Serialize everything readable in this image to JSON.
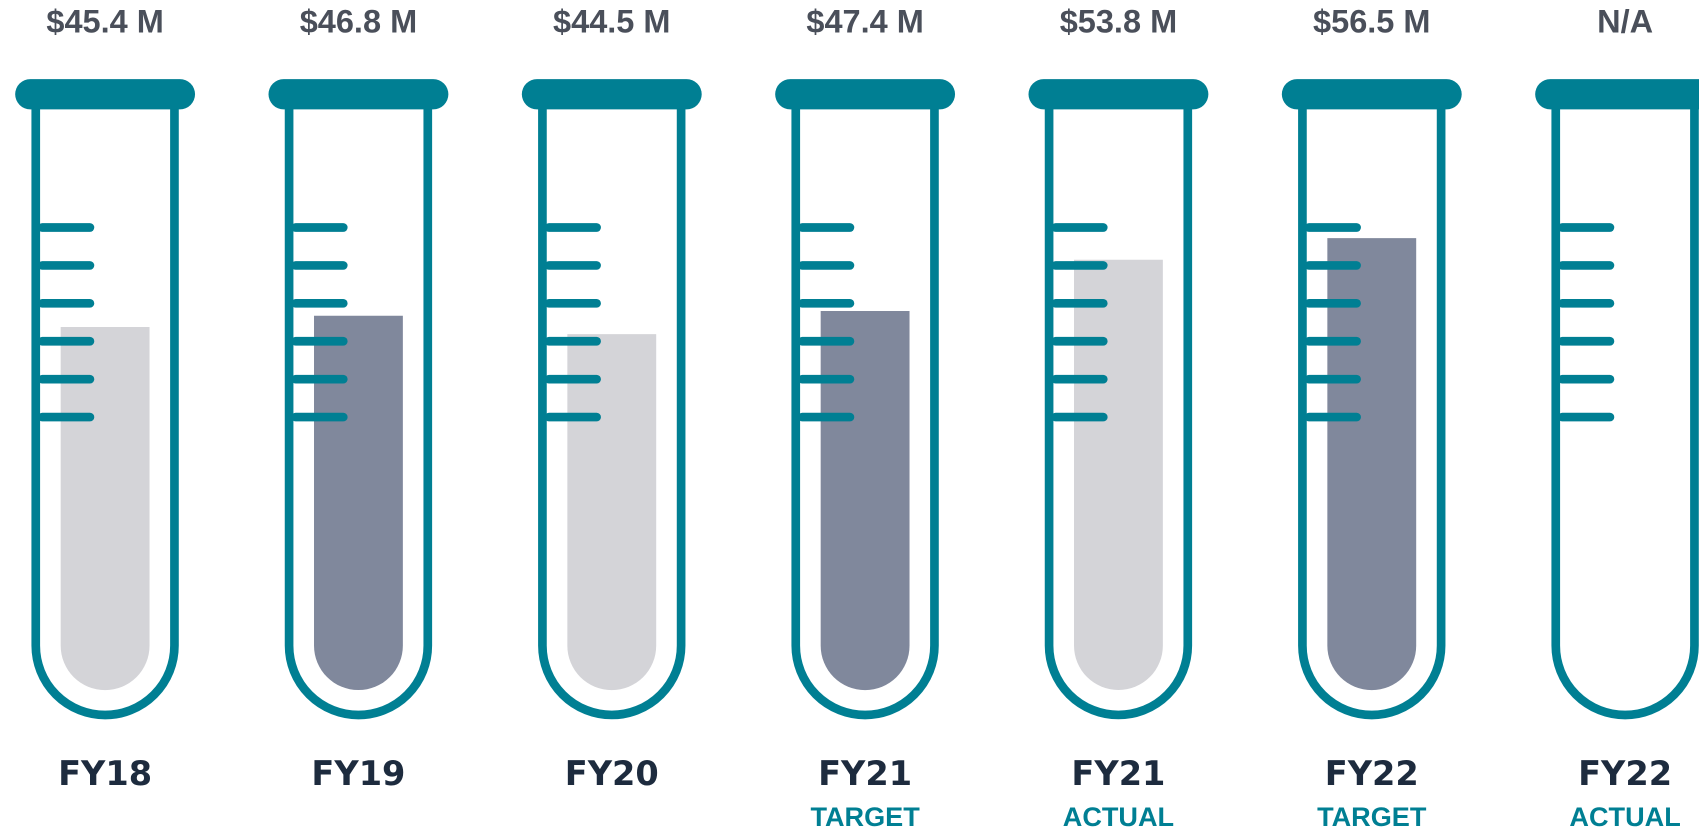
{
  "chart_data": {
    "type": "bar",
    "categories": [
      "FY18",
      "FY19",
      "FY20",
      "FY21",
      "FY21",
      "FY22",
      "FY22"
    ],
    "sublabels": [
      null,
      null,
      null,
      "TARGET",
      "ACTUAL",
      "TARGET",
      "ACTUAL"
    ],
    "values": [
      45.4,
      46.8,
      44.5,
      47.4,
      53.8,
      56.5,
      null
    ],
    "value_labels": [
      "$45.4 M",
      "$46.8 M",
      "$44.5 M",
      "$47.4 M",
      "$53.8 M",
      "$56.5 M",
      "N/A"
    ],
    "colors": [
      "#d4d4d8",
      "#80889c",
      "#d4d4d8",
      "#80889c",
      "#d4d4d8",
      "#80889c",
      "#d4d4d8"
    ],
    "tube_color": "#007f93",
    "ylim": [
      0,
      60
    ]
  }
}
